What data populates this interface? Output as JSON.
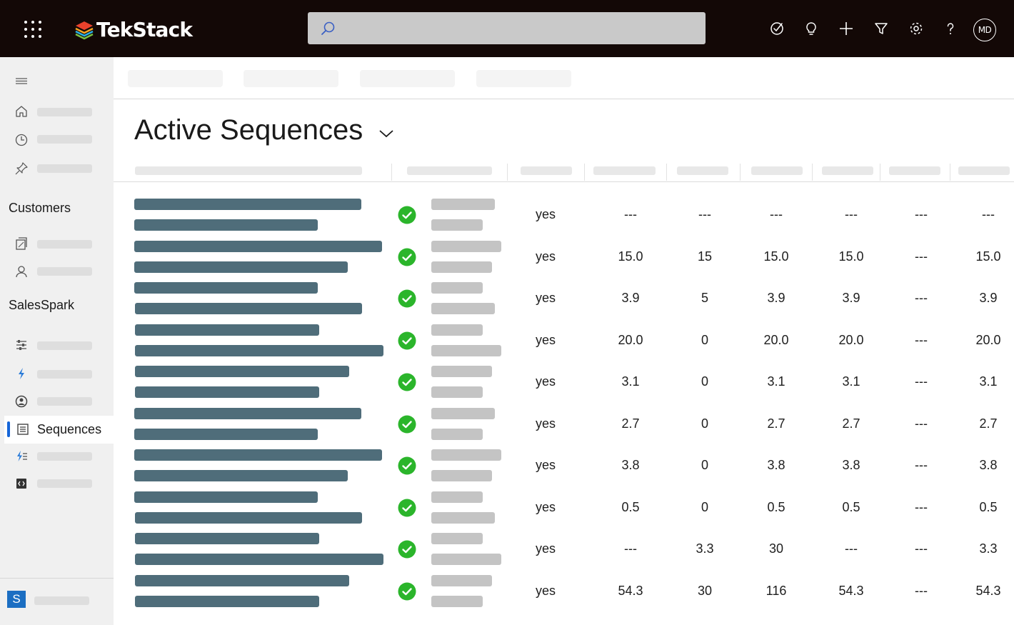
{
  "topbar": {
    "app_name": "TekStack",
    "search_placeholder": "",
    "avatar_initials": "MD",
    "icons": [
      "waffle-icon",
      "assistant-icon",
      "lightbulb-icon",
      "plus-icon",
      "filter-icon",
      "gear-icon",
      "help-icon"
    ]
  },
  "sidebar": {
    "sections": [
      {
        "heading": "Customers",
        "items": [
          "accounts-icon",
          "contacts-icon"
        ]
      },
      {
        "heading": "SalesSpark",
        "items": [
          "dashboard-icon",
          "spark-icon",
          "user-circle-icon",
          "sequences-icon",
          "sequence-steps-icon",
          "code-icon"
        ]
      }
    ],
    "active_item": "Sequences",
    "area_badge": "S"
  },
  "view": {
    "title": "Active Sequences"
  },
  "colors": {
    "topbar": "#130806",
    "sidebar": "#f0f0f0",
    "accent": "#1565d8",
    "status_ok": "#2bb52b",
    "redacted_dark": "#4f6d7a",
    "redacted_light": "#c4c4c4"
  },
  "grid": {
    "rows": [
      {
        "active": "yes",
        "values": [
          "---",
          "---",
          "---",
          "---",
          "---",
          "---"
        ]
      },
      {
        "active": "yes",
        "values": [
          "15.0",
          "15",
          "15.0",
          "15.0",
          "---",
          "15.0"
        ]
      },
      {
        "active": "yes",
        "values": [
          "3.9",
          "5",
          "3.9",
          "3.9",
          "---",
          "3.9"
        ]
      },
      {
        "active": "yes",
        "values": [
          "20.0",
          "0",
          "20.0",
          "20.0",
          "---",
          "20.0"
        ]
      },
      {
        "active": "yes",
        "values": [
          "3.1",
          "0",
          "3.1",
          "3.1",
          "---",
          "3.1"
        ]
      },
      {
        "active": "yes",
        "values": [
          "2.7",
          "0",
          "2.7",
          "2.7",
          "---",
          "2.7"
        ]
      },
      {
        "active": "yes",
        "values": [
          "3.8",
          "0",
          "3.8",
          "3.8",
          "---",
          "3.8"
        ]
      },
      {
        "active": "yes",
        "values": [
          "0.5",
          "0",
          "0.5",
          "0.5",
          "---",
          "0.5"
        ]
      },
      {
        "active": "yes",
        "values": [
          "---",
          "3.3",
          "30",
          "---",
          "---",
          "3.3"
        ]
      },
      {
        "active": "yes",
        "values": [
          "54.3",
          "30",
          "116",
          "54.3",
          "---",
          "54.3"
        ]
      }
    ]
  }
}
